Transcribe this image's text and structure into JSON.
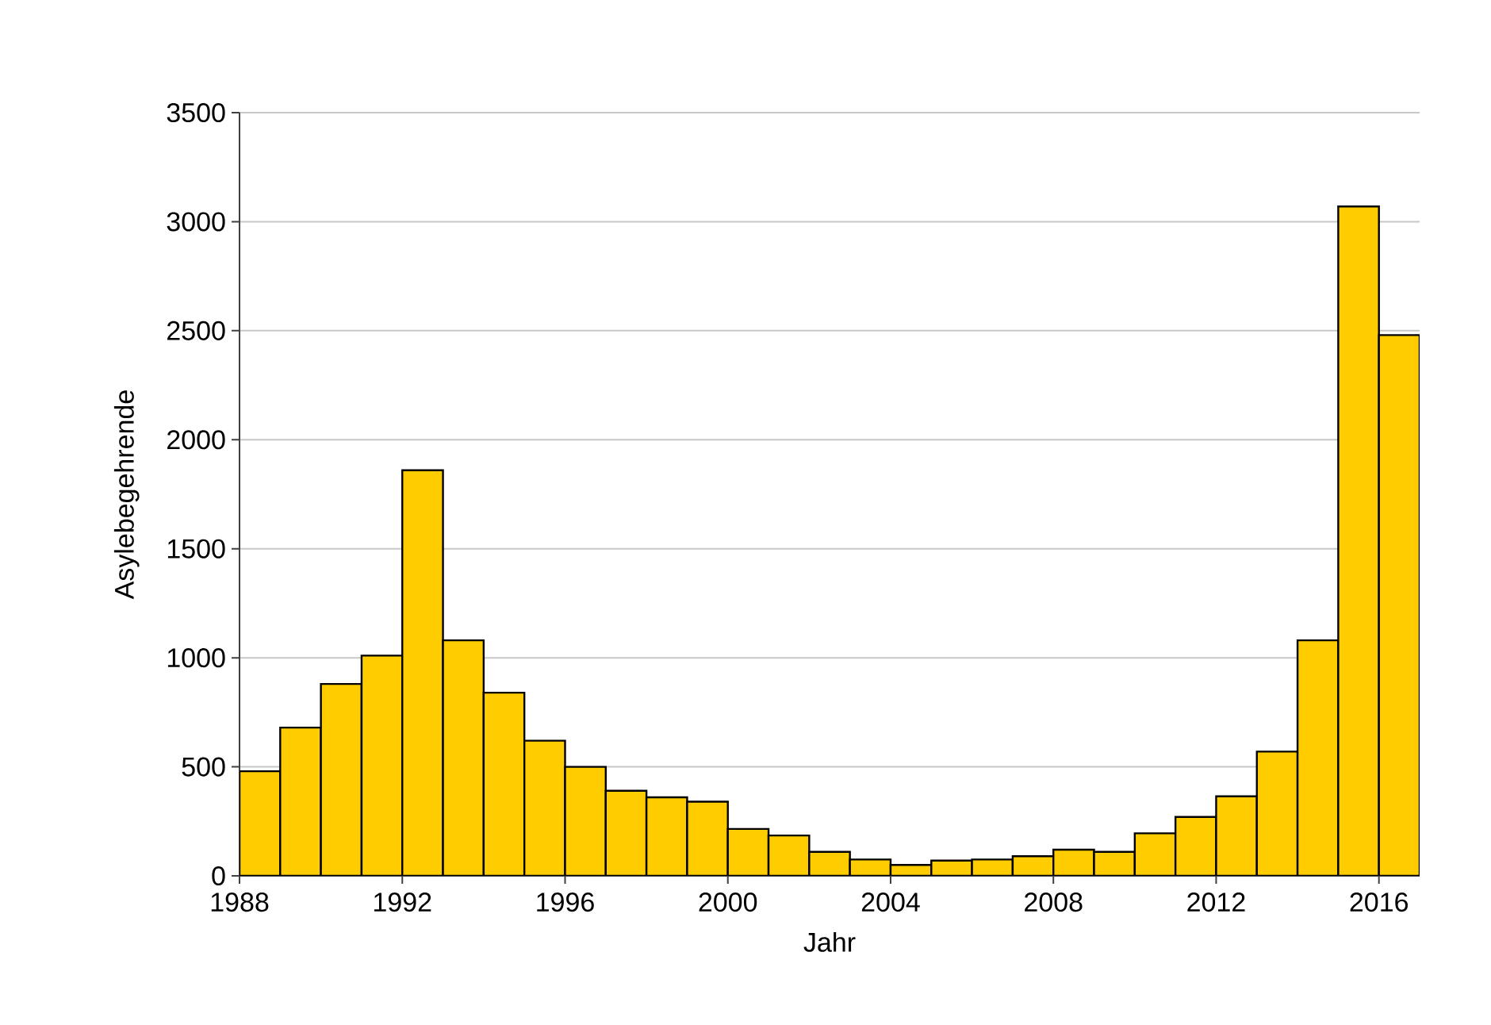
{
  "chart_data": {
    "type": "histogram",
    "xlabel": "Jahr",
    "ylabel": "Asylebegehrende",
    "bins": [
      1988,
      1989,
      1990,
      1991,
      1992,
      1993,
      1994,
      1995,
      1996,
      1997,
      1998,
      1999,
      2000,
      2001,
      2002,
      2003,
      2004,
      2005,
      2006,
      2007,
      2008,
      2009,
      2010,
      2011,
      2012,
      2013,
      2014,
      2015,
      2016,
      2017
    ],
    "values": [
      480,
      680,
      880,
      1010,
      1860,
      1080,
      840,
      620,
      500,
      390,
      360,
      340,
      215,
      185,
      110,
      75,
      50,
      70,
      75,
      90,
      120,
      110,
      195,
      270,
      365,
      570,
      1080,
      3070,
      2480
    ],
    "color": "#ffcc00",
    "xlim": [
      1988,
      2017
    ],
    "xticks": [
      1988,
      1992,
      1996,
      2000,
      2004,
      2008,
      2012,
      2016
    ],
    "ylim": [
      0,
      3500
    ],
    "yticks": [
      0,
      500,
      1000,
      1500,
      2000,
      2500,
      3000,
      3500
    ],
    "grid": "y"
  }
}
